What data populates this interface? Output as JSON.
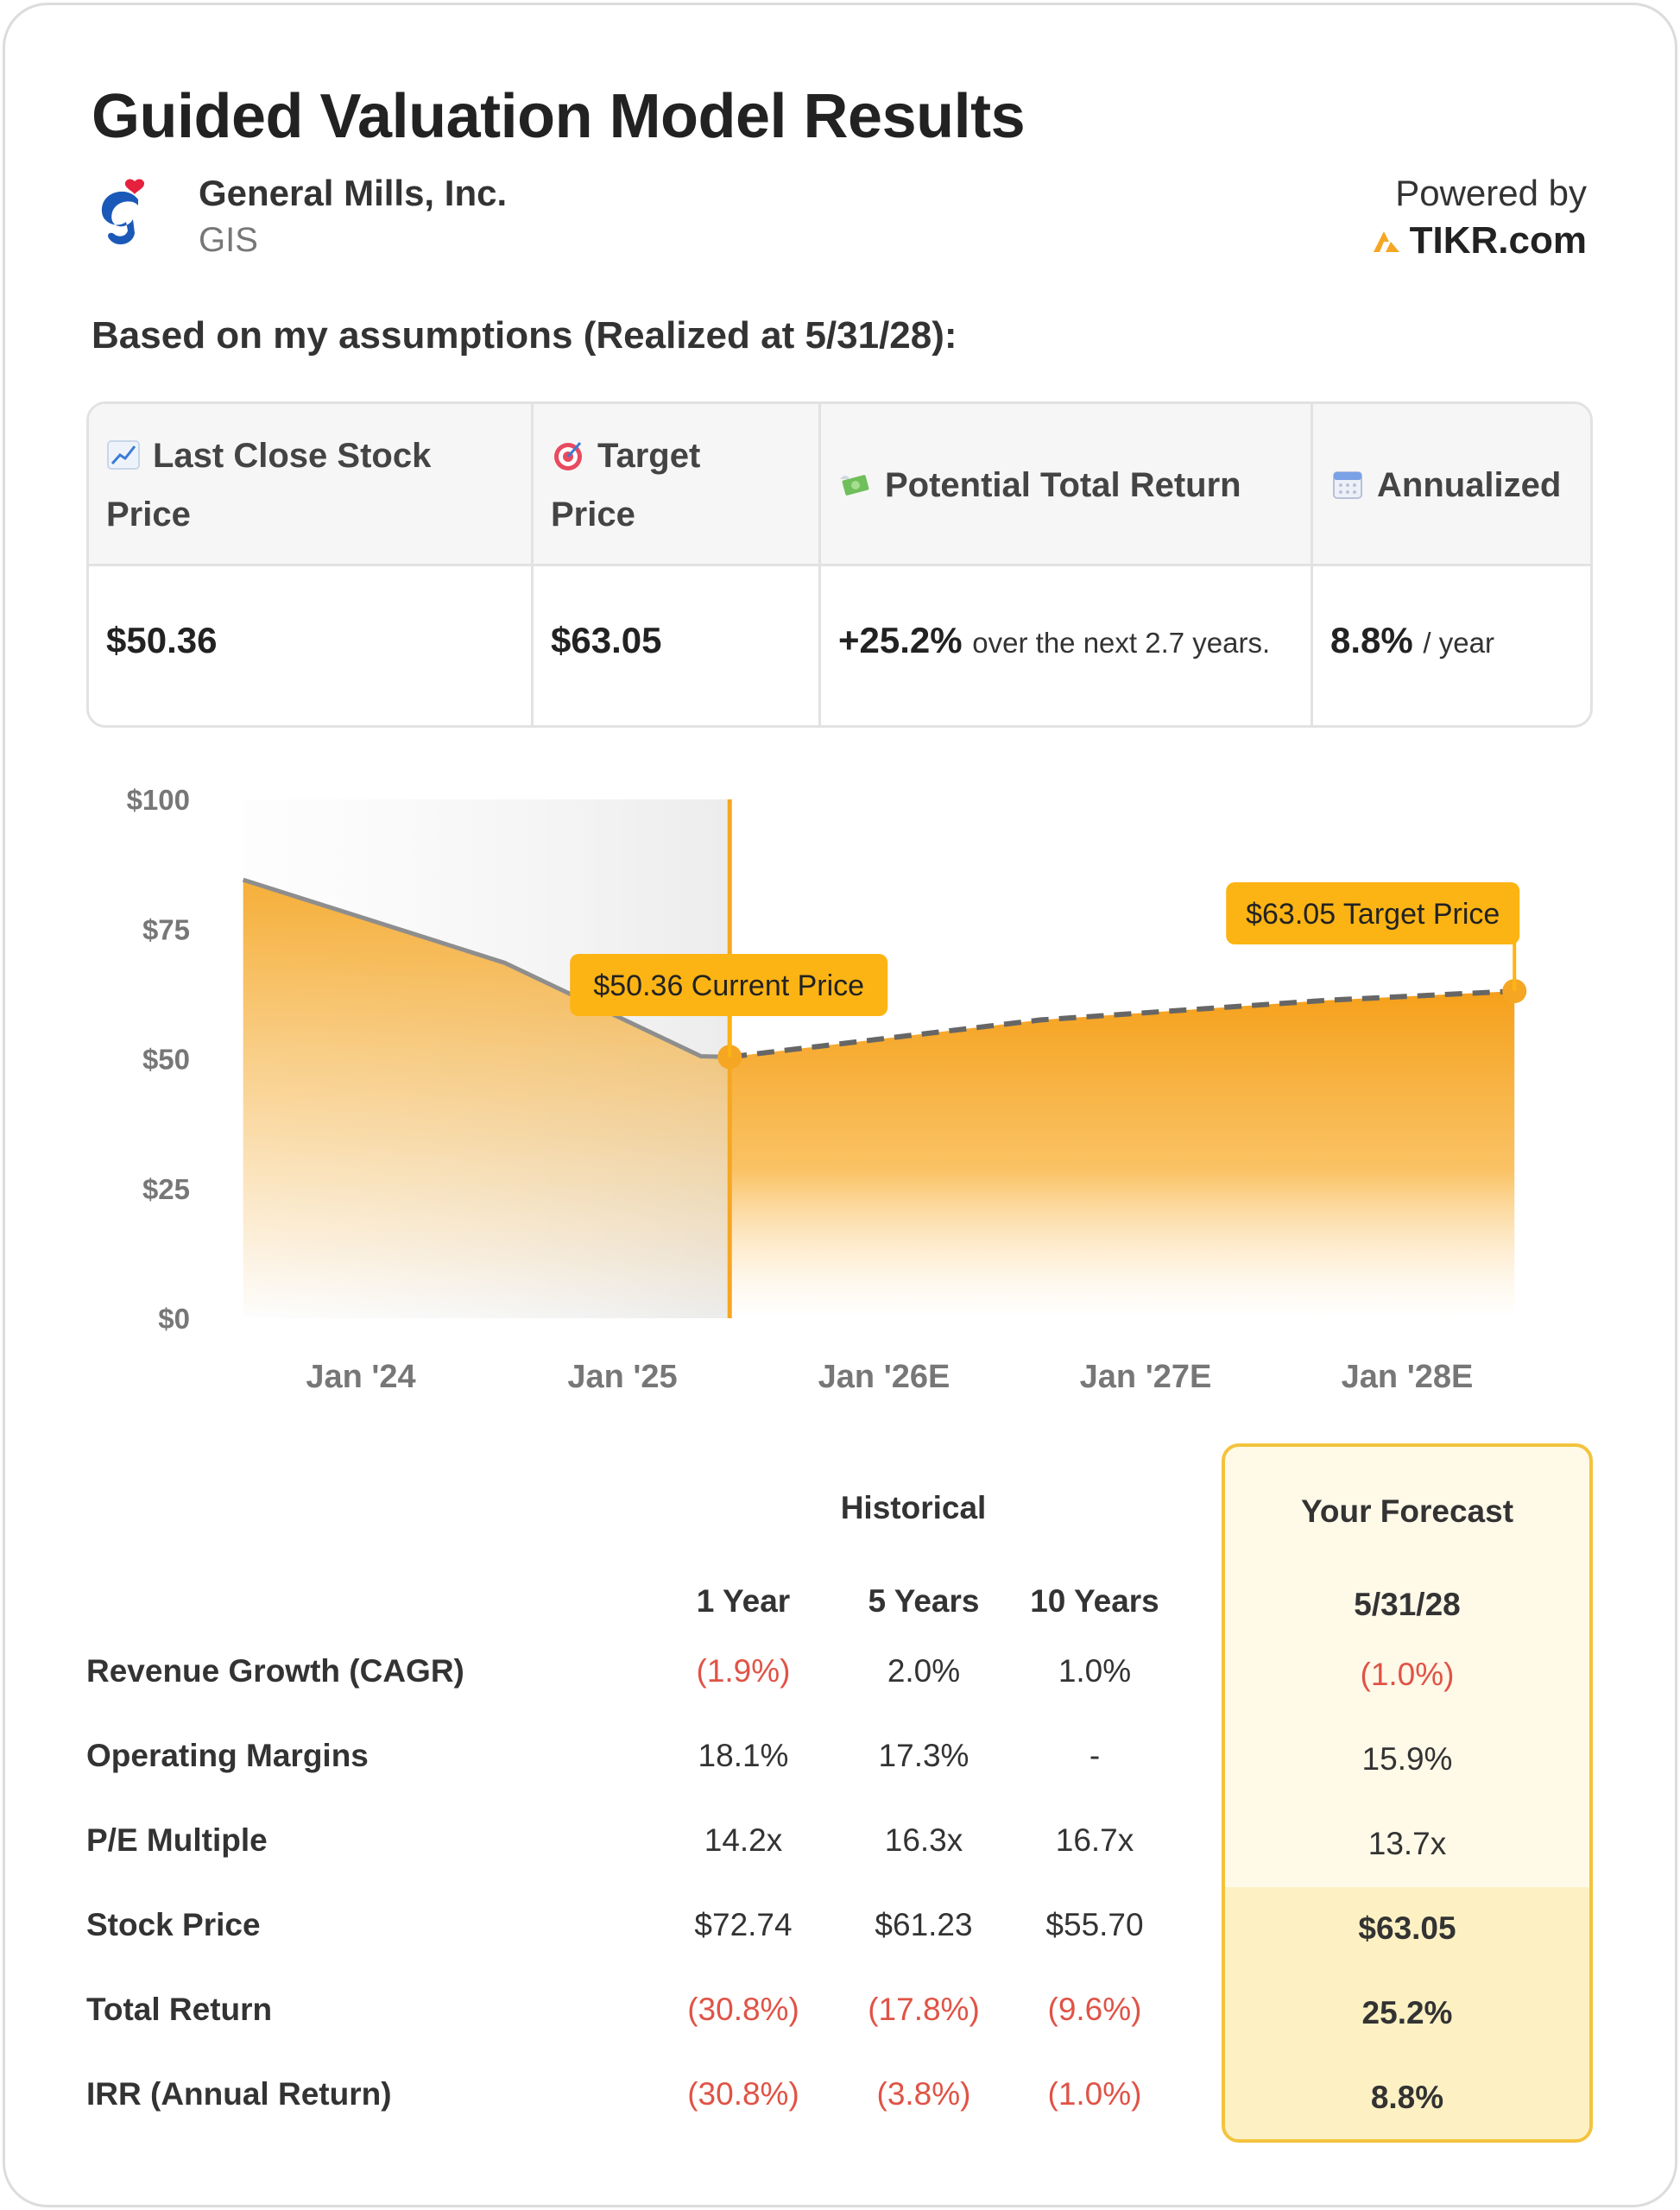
{
  "title": "Guided Valuation Model Results",
  "company": {
    "name": "General Mills, Inc.",
    "ticker": "GIS",
    "logo_icon": "general-mills-g-logo"
  },
  "powered_by": {
    "label": "Powered by",
    "brand": "TIKR.com"
  },
  "assumptions_heading": "Based on my assumptions (Realized at 5/31/28):",
  "summary": {
    "last_close": {
      "icon": "chart-increasing-icon",
      "label_line1": "Last Close Stock",
      "label_line2": "Price",
      "value": "$50.36"
    },
    "target": {
      "icon": "target-icon",
      "label_line1": "Target",
      "label_line2": "Price",
      "value": "$63.05"
    },
    "potential_return": {
      "icon": "money-with-wings-icon",
      "label": "Potential Total Return",
      "value": "+25.2%",
      "suffix": "over the next 2.7 years."
    },
    "annualized": {
      "icon": "calendar-icon",
      "label": "Annualized",
      "value": "8.8%",
      "suffix": "/ year"
    }
  },
  "chart_data": {
    "type": "area",
    "yticks": [
      "$100",
      "$75",
      "$50",
      "$25",
      "$0"
    ],
    "ylim": [
      0,
      100
    ],
    "xticks": [
      "Jan '24",
      "Jan '25",
      "Jan '26E",
      "Jan '27E",
      "Jan '28E"
    ],
    "xtick_positions": [
      2024,
      2025,
      2026,
      2027,
      2028
    ],
    "historical": {
      "x": [
        2023.55,
        2024.55,
        2025.3,
        2025.41
      ],
      "y": [
        84.5,
        68.5,
        50.5,
        50.36
      ]
    },
    "forecast": {
      "x": [
        2025.41,
        2026.6,
        2027.7,
        2028.41
      ],
      "y": [
        50.36,
        57.5,
        61.3,
        63.05
      ]
    },
    "current_marker": {
      "x": 2025.41,
      "y": 50.36,
      "label": "$50.36 Current Price"
    },
    "target_marker": {
      "x": 2028.41,
      "y": 63.05,
      "label": "$63.05 Target Price"
    },
    "colors": {
      "accent": "#f5a623",
      "historical_line": "#8e8e8e",
      "forecast_line": "#666666",
      "label_bg": "#fcb414"
    }
  },
  "table": {
    "historical_header": "Historical",
    "forecast_header": "Your Forecast",
    "columns": [
      "1 Year",
      "5 Years",
      "10 Years"
    ],
    "forecast_column": "5/31/28",
    "rows": [
      {
        "label": "Revenue Growth (CAGR)",
        "values": [
          "(1.9%)",
          "2.0%",
          "1.0%"
        ],
        "forecast": "(1.0%)",
        "neg": [
          true,
          false,
          false
        ],
        "forecast_neg": true
      },
      {
        "label": "Operating Margins",
        "values": [
          "18.1%",
          "17.3%",
          "-"
        ],
        "forecast": "15.9%",
        "neg": [
          false,
          false,
          false
        ],
        "forecast_neg": false
      },
      {
        "label": "P/E Multiple",
        "values": [
          "14.2x",
          "16.3x",
          "16.7x"
        ],
        "forecast": "13.7x",
        "neg": [
          false,
          false,
          false
        ],
        "forecast_neg": false
      },
      {
        "label": "Stock Price",
        "values": [
          "$72.74",
          "$61.23",
          "$55.70"
        ],
        "forecast": "$63.05",
        "neg": [
          false,
          false,
          false
        ],
        "forecast_neg": false
      },
      {
        "label": "Total Return",
        "values": [
          "(30.8%)",
          "(17.8%)",
          "(9.6%)"
        ],
        "forecast": "25.2%",
        "neg": [
          true,
          true,
          true
        ],
        "forecast_neg": false
      },
      {
        "label": "IRR (Annual Return)",
        "values": [
          "(30.8%)",
          "(3.8%)",
          "(1.0%)"
        ],
        "forecast": "8.8%",
        "neg": [
          true,
          true,
          true
        ],
        "forecast_neg": false
      }
    ]
  }
}
